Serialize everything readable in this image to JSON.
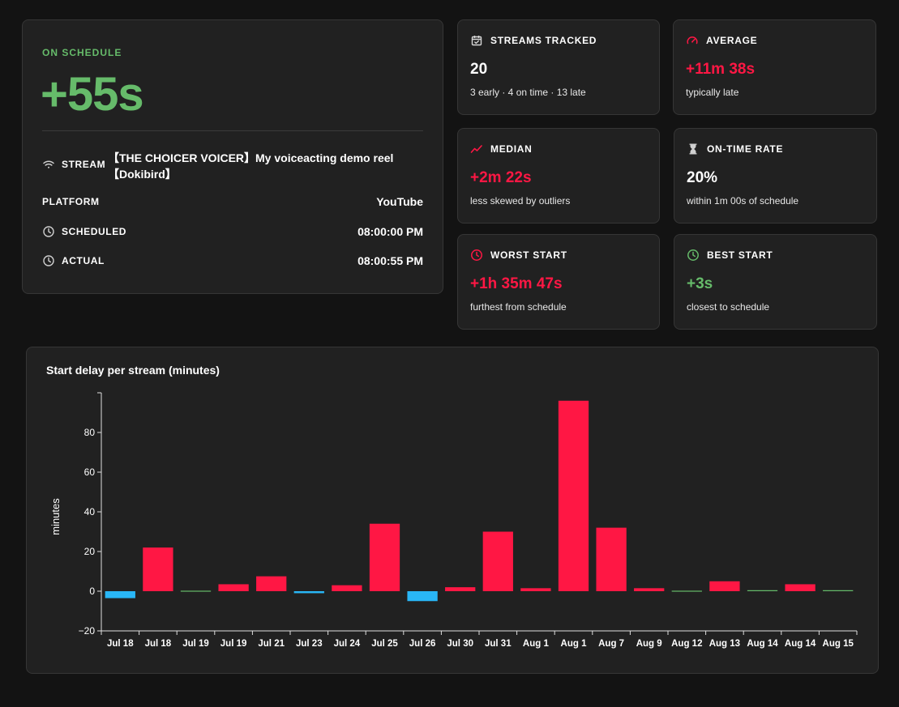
{
  "main": {
    "status_label": "ON SCHEDULE",
    "delay": "+55s",
    "stream_label": "STREAM",
    "stream_title": "【THE CHOICER VOICER】My voiceacting demo reel 【Dokibird】",
    "platform_label": "PLATFORM",
    "platform_value": "YouTube",
    "scheduled_label": "SCHEDULED",
    "scheduled_value": "08:00:00 PM",
    "actual_label": "ACTUAL",
    "actual_value": "08:00:55 PM"
  },
  "stats": {
    "tracked": {
      "title": "STREAMS TRACKED",
      "value": "20",
      "sub": "3 early · 4 on time · 13 late",
      "icon": "calendar-check-icon"
    },
    "average": {
      "title": "AVERAGE",
      "value": "+11m 38s",
      "sub": "typically late",
      "icon": "speedometer-icon"
    },
    "median": {
      "title": "MEDIAN",
      "value": "+2m 22s",
      "sub": "less skewed by outliers",
      "icon": "trend-line-icon"
    },
    "ontime": {
      "title": "ON-TIME RATE",
      "value": "20%",
      "sub": "within 1m 00s of schedule",
      "icon": "hourglass-icon"
    },
    "worst": {
      "title": "WORST START",
      "value": "+1h 35m 47s",
      "sub": "furthest from schedule",
      "icon": "clock-icon"
    },
    "best": {
      "title": "BEST START",
      "value": "+3s",
      "sub": "closest to schedule",
      "icon": "clock-icon"
    }
  },
  "colors": {
    "late": "#ff1744",
    "early": "#29b6f6",
    "on_time": "#66bb6a"
  },
  "chart_data": {
    "type": "bar",
    "title": "Start delay per stream (minutes)",
    "ylabel": "minutes",
    "xlabel": "",
    "ylim": [
      -20,
      100
    ],
    "yticks": [
      -20,
      0,
      20,
      40,
      60,
      80
    ],
    "categories": [
      "Jul 18",
      "Jul 18",
      "Jul 19",
      "Jul 19",
      "Jul 21",
      "Jul 23",
      "Jul 24",
      "Jul 25",
      "Jul 26",
      "Jul 30",
      "Jul 31",
      "Aug 1",
      "Aug 1",
      "Aug 7",
      "Aug 9",
      "Aug 12",
      "Aug 13",
      "Aug 14",
      "Aug 14",
      "Aug 15"
    ],
    "values": [
      -3.5,
      22,
      0.2,
      3.5,
      7.5,
      -1,
      3,
      34,
      -5,
      2,
      30,
      1.5,
      96,
      32,
      1.5,
      0,
      5,
      0.5,
      3.5,
      0.5
    ],
    "status": [
      "early",
      "late",
      "on_time",
      "late",
      "late",
      "early",
      "late",
      "late",
      "early",
      "late",
      "late",
      "late",
      "late",
      "late",
      "late",
      "on_time",
      "late",
      "on_time",
      "late",
      "on_time"
    ],
    "grid": false,
    "legend": "none"
  }
}
